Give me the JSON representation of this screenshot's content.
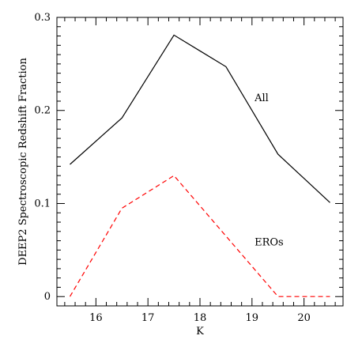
{
  "chart_data": {
    "type": "line",
    "xlabel": "K",
    "ylabel": "DEEP2 Spectroscopic Redshift Fraction",
    "xlim": [
      15.25,
      20.75
    ],
    "ylim": [
      -0.01,
      0.3
    ],
    "x_ticks": [
      16,
      17,
      18,
      19,
      20
    ],
    "y_ticks": [
      0,
      0.1,
      0.2,
      0.3
    ],
    "y_tick_labels": [
      "0",
      "0.1",
      "0.2",
      "0.3"
    ],
    "grid": false,
    "series": [
      {
        "name": "All",
        "color": "#000000",
        "style": "solid",
        "x": [
          15.5,
          16.5,
          17.5,
          18.5,
          19.5,
          20.5
        ],
        "y": [
          0.142,
          0.192,
          0.281,
          0.247,
          0.153,
          0.101
        ]
      },
      {
        "name": "EROs",
        "color": "#ff0000",
        "style": "dashed",
        "x": [
          15.5,
          16.5,
          17.5,
          18.5,
          19.5,
          20.5
        ],
        "y": [
          0.0,
          0.095,
          0.13,
          0.065,
          0.0,
          0.0
        ]
      }
    ],
    "annotations": [
      {
        "text": "All",
        "x": 19.05,
        "y": 0.21
      },
      {
        "text": "EROs",
        "x": 19.05,
        "y": 0.055
      }
    ]
  }
}
